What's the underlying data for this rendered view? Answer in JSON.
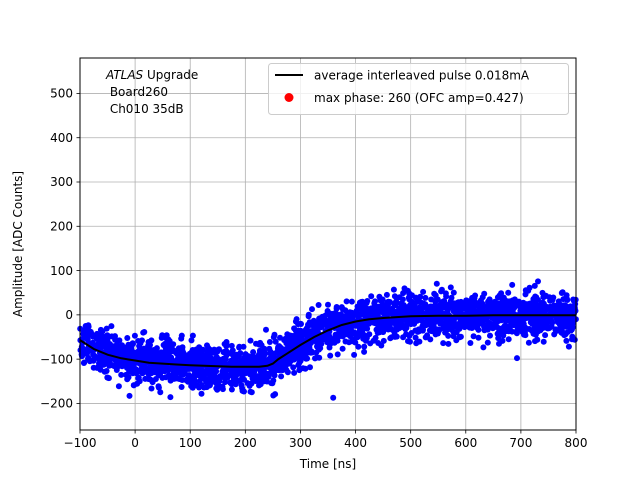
{
  "chart_data": {
    "type": "scatter",
    "title": "",
    "xlabel": "Time [ns]",
    "ylabel": "Amplitude [ADC Counts]",
    "xlim": [
      -100,
      800
    ],
    "ylim": [
      -260,
      580
    ],
    "xticks": [
      -100,
      0,
      100,
      200,
      300,
      400,
      500,
      600,
      700,
      800
    ],
    "yticks": [
      -200,
      -100,
      0,
      100,
      200,
      300,
      400,
      500
    ],
    "grid": true,
    "legend_position": "top-right",
    "annotation": {
      "italic": "ATLAS",
      "rest": " Upgrade",
      "line2": " Board260",
      "line3": " Ch010 35dB"
    },
    "series": [
      {
        "name": "average interleaved pulse 0.018mA",
        "kind": "line",
        "color": "#000000",
        "x": [
          -100,
          -75,
          -50,
          -25,
          0,
          25,
          50,
          75,
          100,
          125,
          150,
          175,
          200,
          225,
          240,
          250,
          260,
          275,
          300,
          325,
          350,
          375,
          400,
          425,
          450,
          475,
          500,
          550,
          600,
          650,
          700,
          750,
          800
        ],
        "y": [
          -57,
          -77,
          -90,
          -98,
          -103,
          -108,
          -110,
          -112,
          -114,
          -115,
          -116,
          -117,
          -117,
          -117,
          -115,
          -110,
          -100,
          -88,
          -68,
          -50,
          -35,
          -23,
          -15,
          -10,
          -7,
          -5,
          -3,
          -2,
          -2,
          -1,
          -1,
          -1,
          -1
        ]
      },
      {
        "name": "max phase: 260 (OFC amp=0.427)",
        "kind": "marker",
        "color": "#ff0000",
        "x": [],
        "y": []
      }
    ],
    "samples": {
      "color": "#0000ff",
      "spread_sd": 25,
      "count": 2600
    }
  }
}
